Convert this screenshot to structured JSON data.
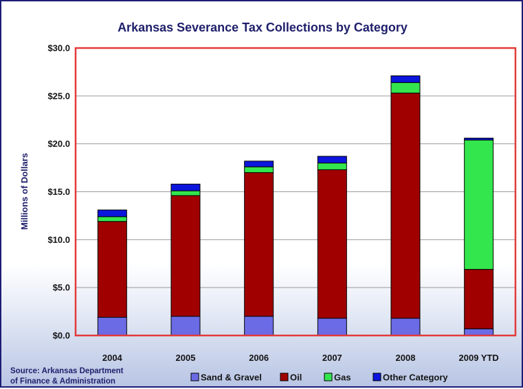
{
  "chart_data": {
    "type": "bar",
    "stacked": true,
    "title": "Arkansas Severance Tax Collections by Category",
    "ylabel": "Millions of Dollars",
    "xlabel": "",
    "categories": [
      "2004",
      "2005",
      "2006",
      "2007",
      "2008",
      "2009 YTD"
    ],
    "ylim": [
      0,
      30
    ],
    "yticks": [
      "$0.0",
      "$5.0",
      "$10.0",
      "$15.0",
      "$20.0",
      "$25.0",
      "$30.0"
    ],
    "ytick_values": [
      0,
      5,
      10,
      15,
      20,
      25,
      30
    ],
    "grid": true,
    "legend_position": "bottom",
    "series": [
      {
        "name": "Sand & Gravel",
        "color": "#6b6be6",
        "values": [
          1.9,
          2.0,
          2.0,
          1.8,
          1.8,
          0.7
        ]
      },
      {
        "name": "Oil",
        "color": "#a00000",
        "values": [
          10.0,
          12.6,
          15.0,
          15.5,
          23.5,
          6.2
        ]
      },
      {
        "name": "Gas",
        "color": "#33e64d",
        "values": [
          0.5,
          0.5,
          0.6,
          0.7,
          1.1,
          13.5
        ]
      },
      {
        "name": "Other Category",
        "color": "#0c15dc",
        "values": [
          0.7,
          0.7,
          0.6,
          0.7,
          0.7,
          0.2
        ]
      }
    ],
    "source": [
      "Source:  Arkansas Department",
      "of Finance & Administration"
    ]
  }
}
